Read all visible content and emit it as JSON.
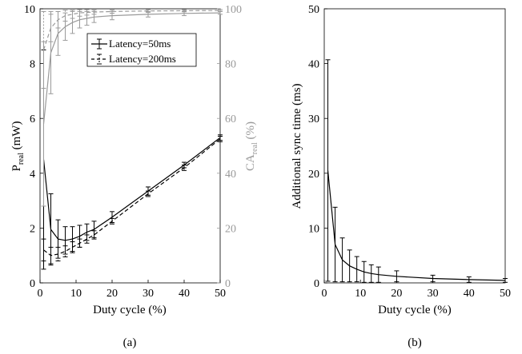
{
  "chart_data": [
    {
      "type": "line",
      "caption": "(a)",
      "xlabel": "Duty cycle (%)",
      "ylabel_left": {
        "main": "P",
        "sub": "real",
        "unit": " (mW)"
      },
      "ylabel_right": {
        "main": "CA",
        "sub": "real",
        "unit": " (%)"
      },
      "xlim": [
        0,
        50
      ],
      "ylim_left": [
        0,
        10
      ],
      "ylim_right": [
        0,
        100
      ],
      "xticks": [
        "0",
        "10",
        "20",
        "30",
        "40",
        "50"
      ],
      "yticks_left": [
        "0",
        "2",
        "4",
        "6",
        "8",
        "10"
      ],
      "yticks_right": [
        "0",
        "20",
        "40",
        "60",
        "80",
        "100"
      ],
      "grid": false,
      "legend_position": "top-right",
      "legend": [
        "Latency=50ms",
        "Latency=200ms"
      ],
      "series": [
        {
          "name": "Latency=50ms",
          "axis": "left",
          "color": "#000000",
          "style": "solid",
          "x": [
            1,
            3,
            5,
            7,
            9,
            11,
            13,
            15,
            20,
            30,
            40,
            50
          ],
          "y": [
            4.5,
            1.95,
            1.6,
            1.55,
            1.6,
            1.7,
            1.85,
            1.95,
            2.4,
            3.35,
            4.3,
            5.3
          ],
          "err": [
            4.0,
            1.3,
            0.7,
            0.5,
            0.45,
            0.4,
            0.3,
            0.3,
            0.2,
            0.15,
            0.1,
            0.1
          ]
        },
        {
          "name": "Latency=200ms",
          "axis": "left",
          "color": "#000000",
          "style": "dashed",
          "x": [
            1,
            3,
            5,
            7,
            9,
            11,
            13,
            15,
            20,
            30,
            40,
            50
          ],
          "y": [
            1.2,
            1.0,
            1.05,
            1.15,
            1.3,
            1.45,
            1.6,
            1.75,
            2.25,
            3.25,
            4.2,
            5.25
          ],
          "err": [
            0.4,
            0.3,
            0.25,
            0.2,
            0.2,
            0.15,
            0.15,
            0.15,
            0.1,
            0.1,
            0.1,
            0.1
          ]
        },
        {
          "name": "CA Latency=50ms",
          "axis": "right",
          "color": "#9a9a9a",
          "style": "solid",
          "x": [
            1,
            3,
            5,
            7,
            9,
            11,
            13,
            15,
            20,
            30,
            40,
            50
          ],
          "y": [
            58,
            84,
            91,
            93.5,
            95,
            96,
            96.5,
            97,
            97.5,
            98,
            98.3,
            98.5
          ],
          "err": [
            30,
            15,
            8,
            5,
            4,
            3,
            2.5,
            2,
            1.5,
            1,
            0.8,
            0.5
          ]
        },
        {
          "name": "CA Latency=200ms",
          "axis": "right",
          "color": "#9a9a9a",
          "style": "dashed",
          "x": [
            1,
            3,
            5,
            7,
            9,
            11,
            13,
            15,
            20,
            30,
            40,
            50
          ],
          "y": [
            85,
            93,
            96,
            97.5,
            98,
            98.5,
            98.7,
            98.8,
            99,
            99.2,
            99.3,
            99.4
          ],
          "err": [
            14,
            5,
            3,
            2,
            1.5,
            1.2,
            1,
            0.8,
            0.6,
            0.5,
            0.4,
            0.3
          ]
        }
      ]
    },
    {
      "type": "line",
      "caption": "(b)",
      "xlabel": "Duty cycle (%)",
      "ylabel": "Additional sync time (ms)",
      "xlim": [
        0,
        50
      ],
      "ylim": [
        0,
        50
      ],
      "xticks": [
        "0",
        "10",
        "20",
        "30",
        "40",
        "50"
      ],
      "yticks": [
        "0",
        "10",
        "20",
        "30",
        "40",
        "50"
      ],
      "grid": false,
      "series": [
        {
          "color": "#000000",
          "style": "solid",
          "x": [
            1,
            3,
            5,
            7,
            9,
            11,
            13,
            15,
            20,
            30,
            40,
            50
          ],
          "y": [
            20.5,
            7,
            4.2,
            3.1,
            2.5,
            2.0,
            1.7,
            1.5,
            1.2,
            0.8,
            0.6,
            0.45
          ],
          "err": [
            20.2,
            6.8,
            4.0,
            2.9,
            2.3,
            1.9,
            1.6,
            1.4,
            1.0,
            0.6,
            0.5,
            0.35
          ]
        }
      ]
    }
  ]
}
